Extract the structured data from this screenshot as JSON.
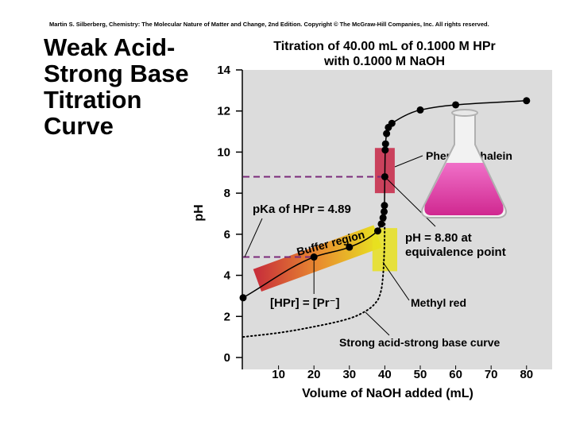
{
  "header": {
    "copyright": "Martin S. Silberberg, Chemistry: The Molecular Nature of Matter and Change, 2nd Edition.  Copyright © The McGraw-Hill Companies, Inc. All rights reserved."
  },
  "slide_title": [
    "Weak Acid-",
    "Strong Base",
    "Titration",
    "Curve"
  ],
  "chart_data": {
    "type": "line",
    "title": [
      "Titration of 40.00 mL of 0.1000 M HPr",
      "with 0.1000 M NaOH"
    ],
    "xlabel": "Volume of NaOH added (mL)",
    "ylabel": "pH",
    "xlim": [
      0,
      87
    ],
    "ylim": [
      0,
      14
    ],
    "xticks": [
      10,
      20,
      30,
      40,
      50,
      60,
      70,
      80
    ],
    "yticks": [
      0,
      2,
      4,
      6,
      8,
      10,
      12,
      14
    ],
    "series": [
      {
        "color": "#000000",
        "markers": true,
        "x": [
          0,
          20,
          30,
          38,
          39,
          39.5,
          39.8,
          39.9,
          40,
          40.1,
          40.2,
          40.5,
          41,
          42,
          50,
          60,
          80
        ],
        "values": [
          2.91,
          4.89,
          5.37,
          6.16,
          6.5,
          6.8,
          7.1,
          7.4,
          8.8,
          10.1,
          10.4,
          10.9,
          11.2,
          11.4,
          12.05,
          12.3,
          12.5
        ]
      },
      {
        "name": "Strong acid-strong base curve",
        "color": "#000000",
        "line_style": "dotted",
        "markers": false,
        "x": [
          0,
          10,
          20,
          30,
          35,
          38,
          39,
          39.5,
          39.9,
          40
        ],
        "values": [
          1.0,
          1.2,
          1.5,
          1.9,
          2.3,
          2.8,
          3.3,
          4.0,
          5.5,
          7.0
        ]
      }
    ],
    "reference_lines": [
      {
        "y": 4.89,
        "label": [
          "pKa of HPr = 4.89"
        ],
        "color": "#7a2a7a"
      },
      {
        "y": 8.8,
        "label": [
          "pH = 8.80 at",
          "equivalence point"
        ],
        "color": "#7a2a7a"
      }
    ],
    "indicators": [
      {
        "label": "Phenolphthalein",
        "range": [
          8.0,
          10.2
        ],
        "color": "#c8304e"
      },
      {
        "label": "Methyl red",
        "range": [
          4.2,
          6.3
        ],
        "color": "#e8e020"
      }
    ],
    "annotations": [
      "Buffer region",
      "[HPr] = [Pr⁻]"
    ]
  }
}
